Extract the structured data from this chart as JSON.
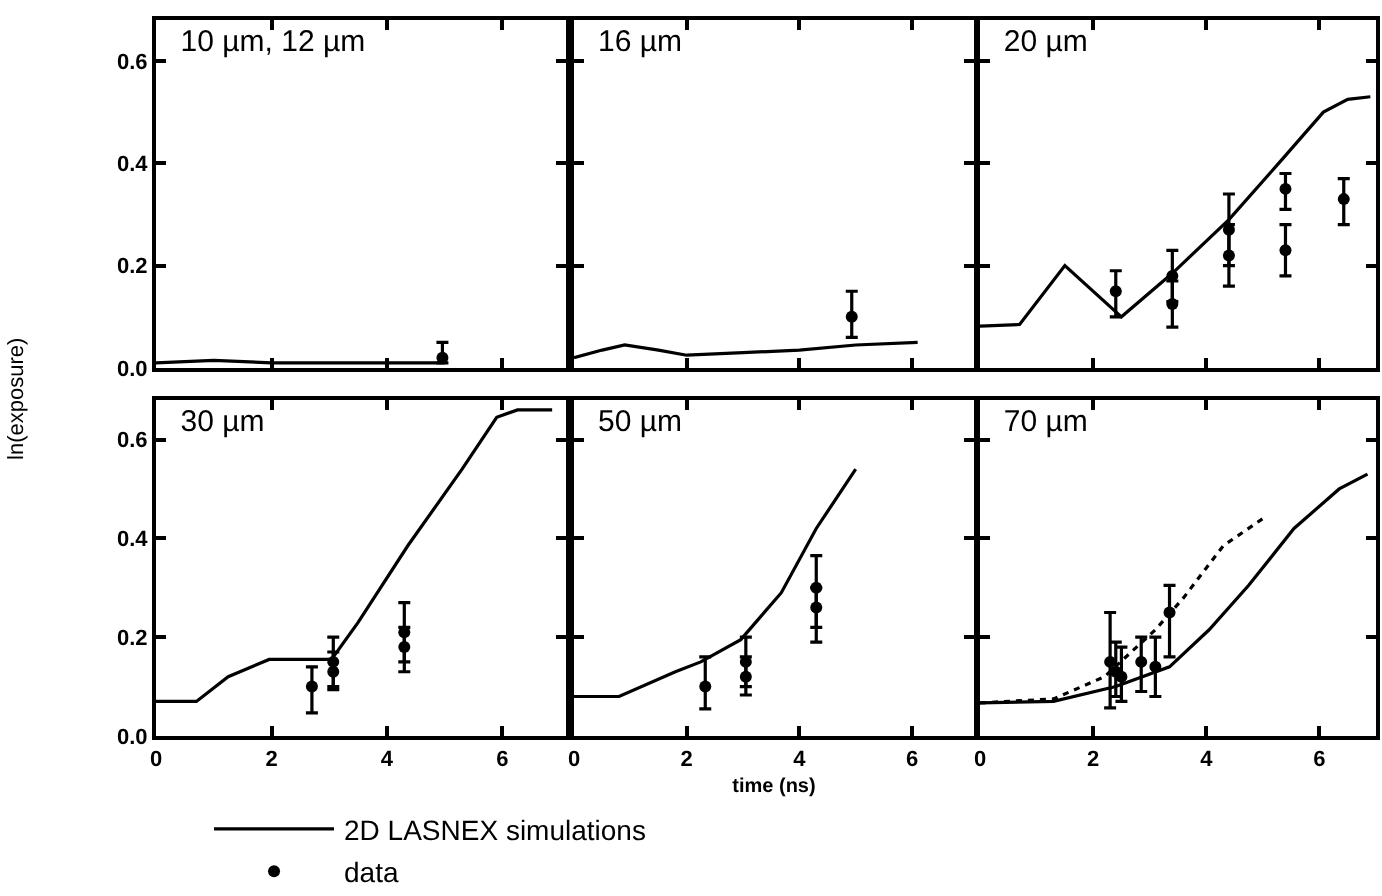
{
  "chart_data": [
    {
      "type": "line",
      "title": "10 µm, 12 µm",
      "ylabel": "ln(exposure)",
      "xlim": [
        0,
        7.1
      ],
      "ylim": [
        0,
        0.68
      ],
      "xticks": [
        0,
        2,
        4,
        6
      ],
      "yticks": [
        {
          "value": 0,
          "label": "0.0"
        },
        {
          "value": 0.2,
          "label": "0.2"
        },
        {
          "value": 0.4,
          "label": "0.4"
        },
        {
          "value": 0.6,
          "label": "0.6"
        }
      ],
      "tick_labels": "y",
      "grid": false,
      "legend": false,
      "series": [
        {
          "type": "line",
          "color": "#000000",
          "line_style": "solid",
          "x": [
            0,
            1,
            2,
            3,
            4,
            5
          ],
          "values": [
            0.01,
            0.015,
            0.01,
            0.01,
            0.01,
            0.01
          ]
        },
        {
          "type": "scatter",
          "marker": "circle",
          "color": "#000000",
          "x": [
            4.96
          ],
          "values": [
            0.02
          ],
          "errors": [
            [
              0.01,
              0.05
            ]
          ]
        }
      ]
    },
    {
      "type": "line",
      "title": "16 µm",
      "xlim": [
        0,
        7.1
      ],
      "ylim": [
        0,
        0.68
      ],
      "xticks": [
        0,
        2,
        4,
        6
      ],
      "yticks": [
        0,
        0.2,
        0.4,
        0.6
      ],
      "tick_labels": false,
      "grid": false,
      "legend": false,
      "series": [
        {
          "type": "line",
          "color": "#000000",
          "line_style": "solid",
          "x": [
            0,
            0.5,
            0.9,
            1.5,
            2,
            3,
            4,
            5,
            6.1
          ],
          "values": [
            0.02,
            0.035,
            0.045,
            0.035,
            0.025,
            0.03,
            0.035,
            0.045,
            0.05
          ]
        },
        {
          "type": "scatter",
          "marker": "circle",
          "color": "#000000",
          "x": [
            4.93
          ],
          "values": [
            0.1
          ],
          "errors": [
            [
              0.06,
              0.15
            ]
          ]
        }
      ]
    },
    {
      "type": "line",
      "title": "20 µm",
      "xlim": [
        0,
        7.0
      ],
      "ylim": [
        0,
        0.68
      ],
      "xticks": [
        0,
        2,
        4,
        6
      ],
      "yticks": [
        0,
        0.2,
        0.4,
        0.6
      ],
      "tick_labels": false,
      "grid": false,
      "legend": false,
      "series": [
        {
          "type": "line",
          "color": "#000000",
          "line_style": "solid",
          "x": [
            0,
            0.7,
            1.5,
            2.5,
            3.4,
            4.4,
            5.36,
            6.07,
            6.5,
            6.9
          ],
          "values": [
            0.082,
            0.085,
            0.2,
            0.1,
            0.185,
            0.29,
            0.41,
            0.5,
            0.525,
            0.53
          ]
        },
        {
          "type": "scatter",
          "marker": "circle",
          "color": "#000000",
          "x": [
            3.4,
            4.4,
            5.4,
            6.43
          ],
          "values": [
            0.18,
            0.27,
            0.35,
            0.33
          ],
          "errors": [
            [
              0.13,
              0.23
            ],
            [
              0.2,
              0.34
            ],
            [
              0.31,
              0.38
            ],
            [
              0.28,
              0.37
            ]
          ]
        },
        {
          "type": "scatter",
          "marker": "circle",
          "color": "#000000",
          "x": [
            2.4,
            3.4,
            4.4,
            5.4
          ],
          "values": [
            0.15,
            0.125,
            0.22,
            0.23
          ],
          "errors": [
            [
              0.1,
              0.19
            ],
            [
              0.08,
              0.17
            ],
            [
              0.16,
              0.28
            ],
            [
              0.18,
              0.28
            ]
          ]
        }
      ]
    },
    {
      "type": "line",
      "title": "30 µm",
      "xlim": [
        0,
        7.1
      ],
      "ylim": [
        0,
        0.68
      ],
      "xticks": [
        0,
        2,
        4,
        6
      ],
      "yticks": [
        {
          "value": 0,
          "label": "0.0"
        },
        {
          "value": 0.2,
          "label": "0.2"
        },
        {
          "value": 0.4,
          "label": "0.4"
        },
        {
          "value": 0.6,
          "label": "0.6"
        }
      ],
      "grid": false,
      "legend": false,
      "series": [
        {
          "type": "line",
          "color": "#000000",
          "line_style": "solid",
          "x": [
            0,
            0.7,
            1.25,
            1.96,
            3.04,
            3.5,
            4.36,
            5.3,
            5.9,
            6.26,
            6.86
          ],
          "values": [
            0.07,
            0.07,
            0.12,
            0.155,
            0.155,
            0.23,
            0.385,
            0.54,
            0.645,
            0.66,
            0.66
          ]
        },
        {
          "type": "scatter",
          "marker": "circle",
          "color": "#000000",
          "x": [
            3.07,
            4.3
          ],
          "values": [
            0.15,
            0.21
          ],
          "errors": [
            [
              0.1,
              0.2
            ],
            [
              0.15,
              0.27
            ]
          ]
        },
        {
          "type": "scatter",
          "marker": "circle",
          "color": "#000000",
          "x": [
            2.7,
            3.07,
            4.3
          ],
          "values": [
            0.1,
            0.13,
            0.18
          ],
          "errors": [
            [
              0.047,
              0.14
            ],
            [
              0.094,
              0.17
            ],
            [
              0.13,
              0.22
            ]
          ]
        }
      ]
    },
    {
      "type": "line",
      "title": "50 µm",
      "xlabel": "time (ns)",
      "xlim": [
        0,
        7.1
      ],
      "ylim": [
        0,
        0.68
      ],
      "xticks": [
        0,
        2,
        4,
        6
      ],
      "yticks": [
        0,
        0.2,
        0.4,
        0.6
      ],
      "tick_labels": "x",
      "grid": false,
      "legend": false,
      "series": [
        {
          "type": "line",
          "color": "#000000",
          "line_style": "solid",
          "x": [
            0,
            0.8,
            1.8,
            2.25,
            2.96,
            3.68,
            4.3,
            5.0
          ],
          "values": [
            0.08,
            0.08,
            0.13,
            0.15,
            0.195,
            0.29,
            0.42,
            0.54
          ]
        },
        {
          "type": "scatter",
          "marker": "circle",
          "color": "#000000",
          "x": [
            3.05,
            4.3
          ],
          "values": [
            0.15,
            0.3
          ],
          "errors": [
            [
              0.1,
              0.2
            ],
            [
              0.22,
              0.365
            ]
          ]
        },
        {
          "type": "scatter",
          "marker": "circle",
          "color": "#000000",
          "x": [
            2.33,
            3.05,
            4.3
          ],
          "values": [
            0.1,
            0.12,
            0.26
          ],
          "errors": [
            [
              0.055,
              0.16
            ],
            [
              0.083,
              0.16
            ],
            [
              0.19,
              0.3
            ]
          ]
        }
      ]
    },
    {
      "type": "line",
      "title": "70 µm",
      "xlim": [
        0,
        7.0
      ],
      "ylim": [
        0,
        0.68
      ],
      "xticks": [
        0,
        2,
        4,
        6
      ],
      "yticks": [
        0,
        0.2,
        0.4,
        0.6
      ],
      "tick_labels": "x",
      "grid": false,
      "legend": "bottom",
      "series": [
        {
          "type": "line",
          "name": "2D LASNEX simulations",
          "color": "#000000",
          "line_style": "solid",
          "x": [
            0,
            1.3,
            2.4,
            3.35,
            4.05,
            4.75,
            5.55,
            6.35,
            6.85
          ],
          "values": [
            0.067,
            0.07,
            0.1,
            0.14,
            0.215,
            0.305,
            0.42,
            0.5,
            0.53
          ]
        },
        {
          "type": "line",
          "color": "#000000",
          "line_style": "dotted",
          "x": [
            0,
            1.3,
            2.2,
            3.1,
            3.6,
            4.3,
            5.0
          ],
          "values": [
            0.067,
            0.075,
            0.12,
            0.215,
            0.28,
            0.385,
            0.44
          ]
        },
        {
          "type": "scatter",
          "marker": "circle",
          "name": "data",
          "color": "#000000",
          "x": [
            2.3,
            2.5,
            2.85,
            3.35
          ],
          "values": [
            0.15,
            0.12,
            0.15,
            0.25
          ],
          "errors": [
            [
              0.057,
              0.25
            ],
            [
              0.07,
              0.18
            ],
            [
              0.09,
              0.2
            ],
            [
              0.16,
              0.305
            ]
          ]
        },
        {
          "type": "scatter",
          "marker": "circle",
          "color": "#000000",
          "x": [
            2.4,
            3.1
          ],
          "values": [
            0.13,
            0.14
          ],
          "errors": [
            [
              0.08,
              0.19
            ],
            [
              0.08,
              0.2
            ]
          ]
        }
      ]
    }
  ]
}
